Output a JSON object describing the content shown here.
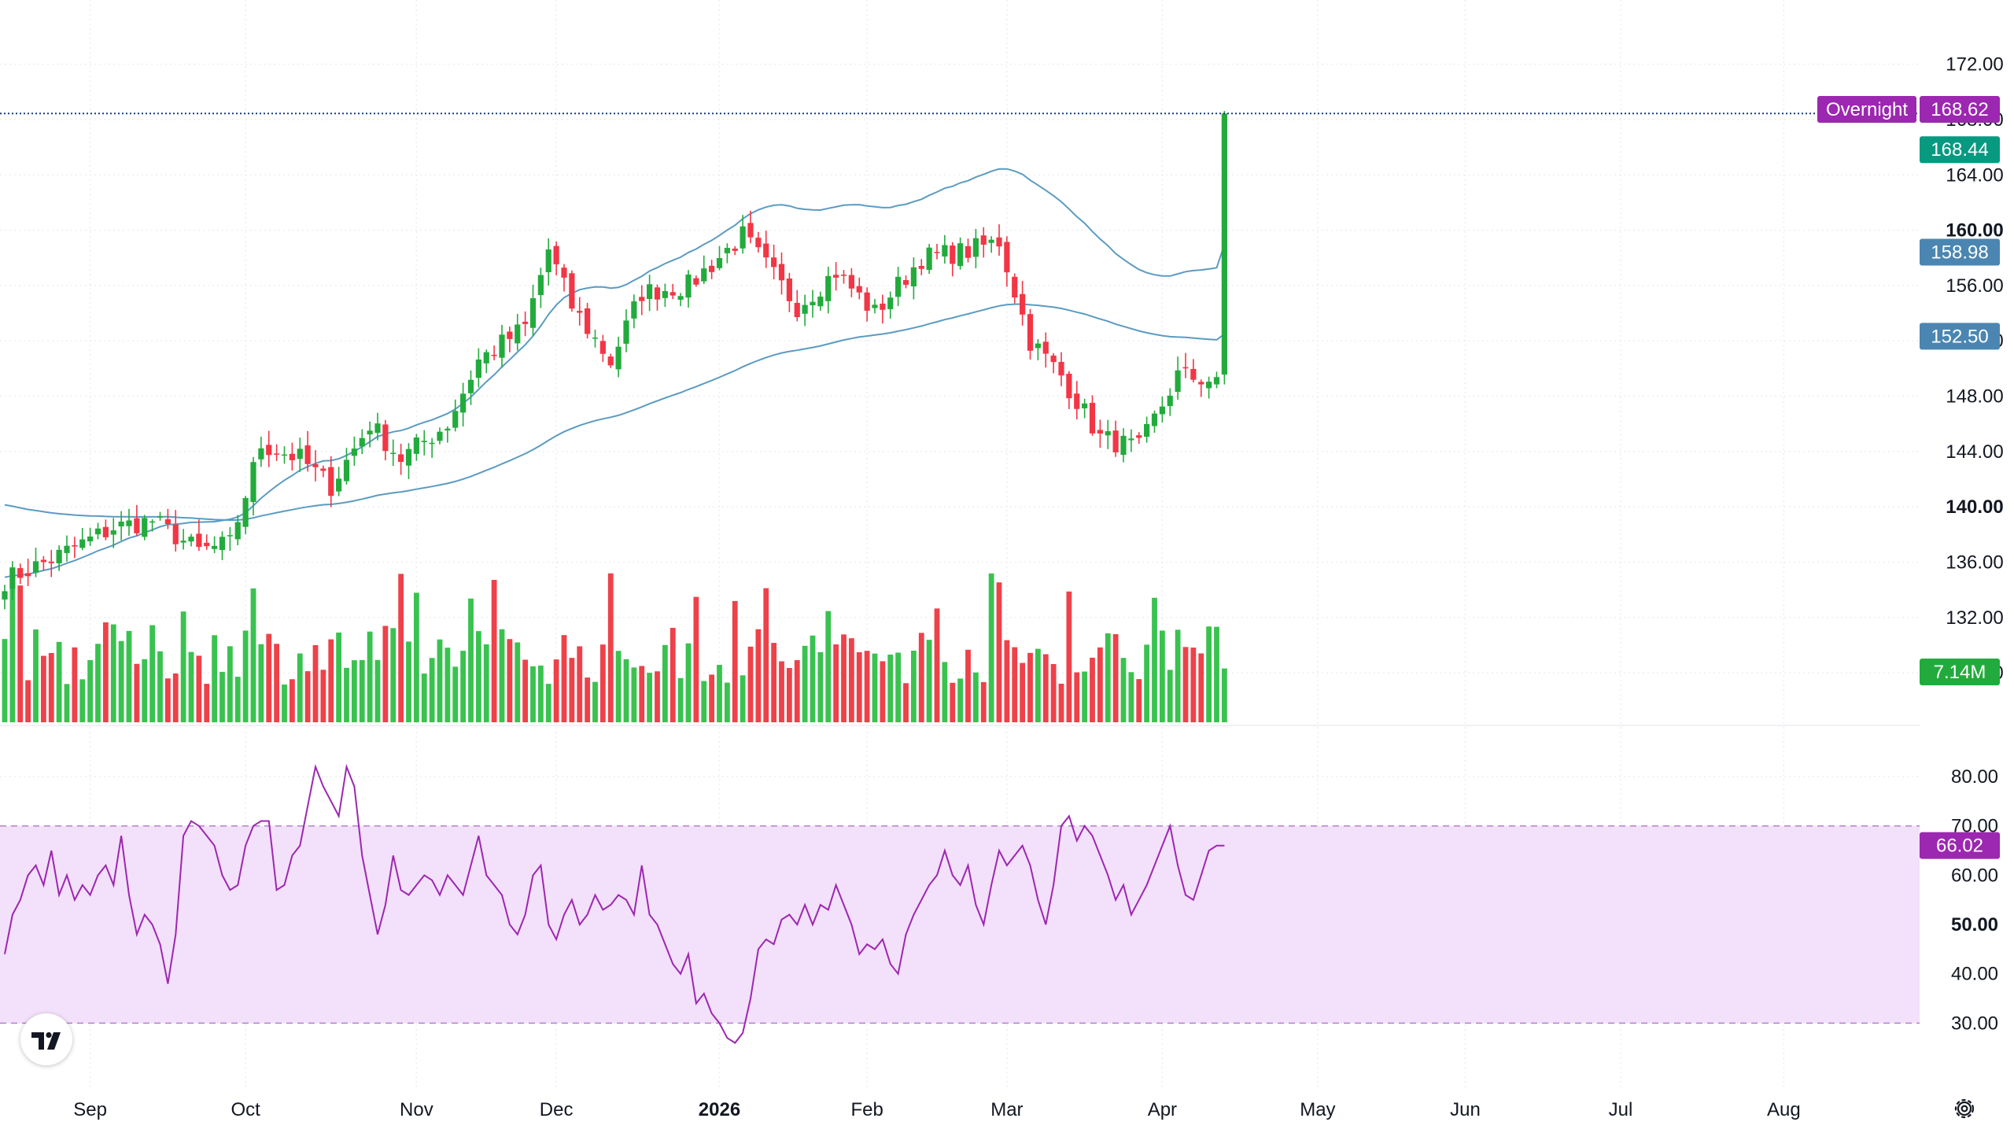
{
  "colors": {
    "up": "#22ab3c",
    "down": "#f23645",
    "up_volume": "#39c24f",
    "down_volume": "#ee4149",
    "ma_line": "#5b9bc2",
    "rsi_line": "#9c27b0",
    "rsi_band": "#f3e0fa",
    "overnight_tag": "#9c27b0",
    "price_tag": "#089981",
    "ma_tag": "#4a86b1"
  },
  "icons": {
    "logo": "tradingview-logo-icon",
    "settings": "gear-icon"
  },
  "chart_data": [
    {
      "type": "candlestick",
      "title": "",
      "price_axis": {
        "ticks": [
          "172.00",
          "168.00",
          "164.00",
          "160.00",
          "156.00",
          "152.00",
          "148.00",
          "144.00",
          "140.00",
          "136.00",
          "132.00",
          "128.00"
        ],
        "bold_ticks": [
          "160.00",
          "140.00"
        ],
        "range": [
          126.3,
          173.8
        ]
      },
      "time_axis": {
        "labels": [
          {
            "text": "Sep",
            "bar": 11,
            "bold": false
          },
          {
            "text": "Oct",
            "bar": 31,
            "bold": false
          },
          {
            "text": "Nov",
            "bar": 53,
            "bold": false
          },
          {
            "text": "Dec",
            "bar": 71,
            "bold": false
          },
          {
            "text": "2026",
            "bar": 92,
            "bold": true
          },
          {
            "text": "Feb",
            "bar": 111,
            "bold": false
          },
          {
            "text": "Mar",
            "bar": 129,
            "bold": false
          },
          {
            "text": "Apr",
            "bar": 149,
            "bold": false
          },
          {
            "text": "May",
            "bar": 169,
            "bold": false
          },
          {
            "text": "Jun",
            "bar": 188,
            "bold": false
          },
          {
            "text": "Jul",
            "bar": 208,
            "bold": false
          },
          {
            "text": "Aug",
            "bar": 229,
            "bold": false
          }
        ]
      },
      "key_levels": {
        "start_close": 136.2,
        "late_sep_low": 137.3,
        "oct_high": 146.3,
        "nov_close": 150.6,
        "dec_high": 159.6,
        "jan_high": 160.2,
        "mar_start_high": 160.2,
        "mar_low": 143.6,
        "apr_high": 150.0,
        "may_low": 142.7,
        "jun_high": 155.0,
        "jul_high": 164.8,
        "late_jul_high": 168.4,
        "last_close": 168.44,
        "last_high": 168.62
      },
      "markers": {
        "overnight_label": "Overnight",
        "overnight_price": "168.62",
        "last_price": "168.44",
        "ma_fast": "158.98",
        "ma_slow": "152.50",
        "volume_last": "7.14M"
      },
      "moving_averages": [
        {
          "period": 50,
          "start": 135.0,
          "end": 158.98
        },
        {
          "period": 200,
          "start": 140.3,
          "end": 152.5
        }
      ],
      "volume": {
        "unit": "M",
        "last": 7.14
      }
    },
    {
      "type": "line",
      "title": "",
      "y_axis": {
        "ticks": [
          "80.00",
          "70.00",
          "60.00",
          "50.00",
          "40.00",
          "30.00"
        ],
        "bold_ticks": [
          "50.00"
        ],
        "range": [
          24,
          84
        ]
      },
      "band": {
        "upper": 70,
        "lower": 30
      },
      "series": [
        {
          "last": 66.02,
          "values": [
            44,
            52,
            55,
            60,
            62,
            58,
            65,
            56,
            60,
            55,
            58,
            56,
            60,
            62,
            58,
            68,
            56,
            48,
            52,
            50,
            46,
            38,
            48,
            68,
            71,
            70,
            68,
            66,
            60,
            57,
            58,
            66,
            70,
            71,
            71,
            57,
            58,
            64,
            66,
            74,
            82,
            78,
            75,
            72,
            82,
            78,
            64,
            56,
            48,
            54,
            64,
            57,
            56,
            58,
            60,
            59,
            56,
            60,
            58,
            56,
            62,
            68,
            60,
            58,
            56,
            50,
            48,
            52,
            60,
            62,
            50,
            47,
            52,
            55,
            50,
            52,
            56,
            53,
            54,
            56,
            55,
            52,
            62,
            52,
            50,
            46,
            42,
            40,
            44,
            34,
            36,
            32,
            30,
            27,
            26,
            28,
            35,
            45,
            47,
            46,
            51,
            52,
            50,
            54,
            50,
            54,
            53,
            58,
            54,
            50,
            44,
            46,
            45,
            47,
            42,
            40,
            48,
            52,
            55,
            58,
            60,
            65,
            60,
            58,
            62,
            54,
            50,
            58,
            65,
            62,
            64,
            66,
            62,
            55,
            50,
            58,
            70,
            72,
            67,
            70,
            68,
            64,
            60,
            55,
            58,
            52,
            55,
            58,
            62,
            66,
            70,
            62,
            56,
            55,
            60,
            65,
            66,
            66
          ]
        }
      ]
    }
  ]
}
